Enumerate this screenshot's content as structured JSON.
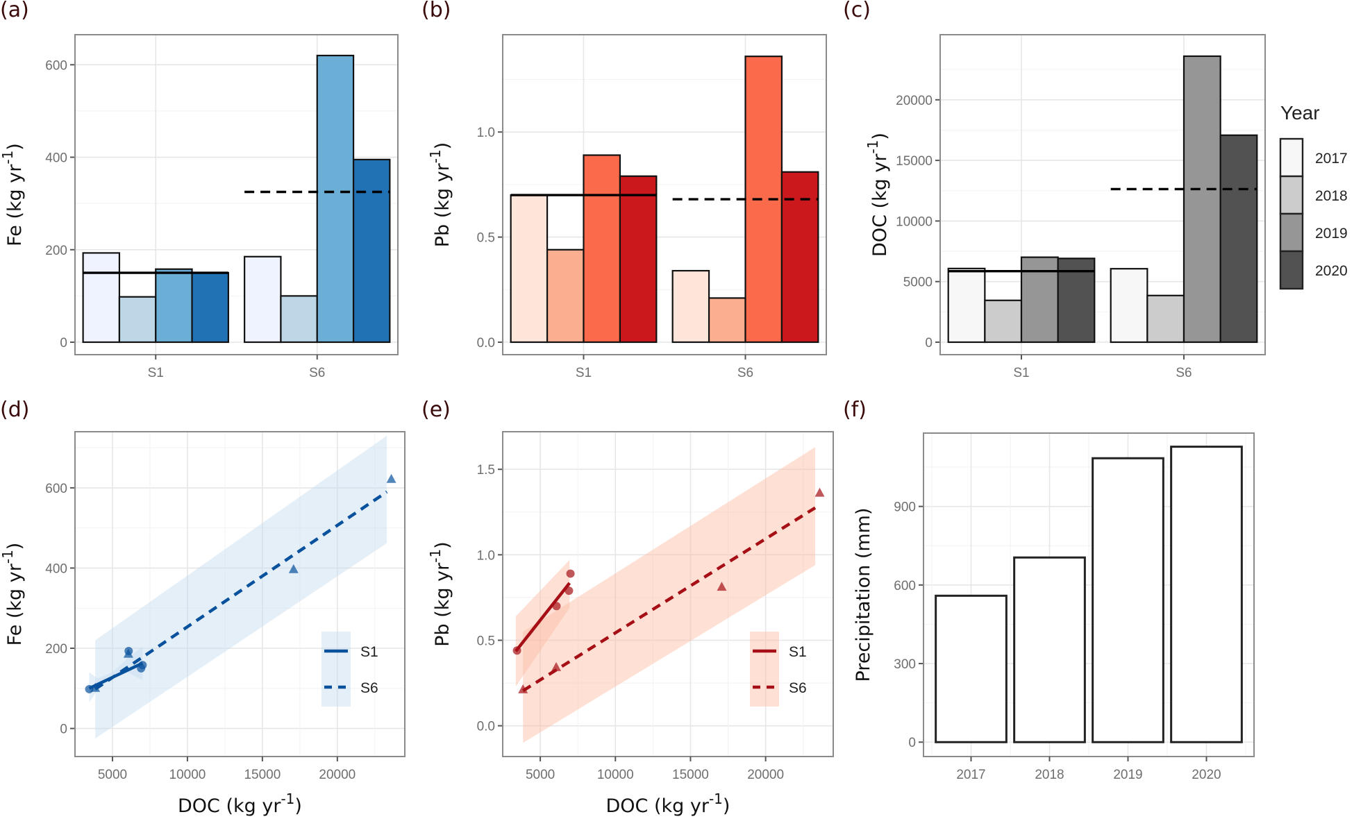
{
  "figure": {
    "panel_labels": [
      "(a)",
      "(b)",
      "(c)",
      "(d)",
      "(e)",
      "(f)"
    ]
  },
  "chart_data": [
    {
      "panel": "(a)",
      "type": "bar",
      "title": "",
      "xlabel": "",
      "ylabel": "Fe (kg yr-1)",
      "ylabel_main": "Fe (kg yr",
      "ylabel_sup": "-1",
      "categories": [
        "S1",
        "S6"
      ],
      "yticks": [
        0,
        200,
        400,
        600
      ],
      "ylim": [
        0,
        650
      ],
      "grid": true,
      "series": [
        {
          "name": "2017",
          "color": "#eff3ff",
          "values": [
            193,
            185
          ]
        },
        {
          "name": "2018",
          "color": "#bdd7e7",
          "values": [
            98,
            100
          ]
        },
        {
          "name": "2019",
          "color": "#6baed6",
          "values": [
            158,
            620
          ]
        },
        {
          "name": "2020",
          "color": "#2171b5",
          "values": [
            150,
            395
          ]
        }
      ],
      "mean_lines": [
        {
          "category": "S1",
          "value": 150,
          "style": "solid"
        },
        {
          "category": "S6",
          "value": 325,
          "style": "dashed"
        }
      ]
    },
    {
      "panel": "(b)",
      "type": "bar",
      "title": "",
      "xlabel": "",
      "ylabel": "Pb (kg yr-1)",
      "ylabel_main": "Pb (kg yr",
      "ylabel_sup": "-1",
      "categories": [
        "S1",
        "S6"
      ],
      "yticks": [
        0.0,
        0.5,
        1.0
      ],
      "ytick_labels": [
        "0.0",
        "0.5",
        "1.0"
      ],
      "ylim": [
        0,
        1.43
      ],
      "grid": true,
      "series": [
        {
          "name": "2017",
          "color": "#fee5d9",
          "values": [
            0.7,
            0.34
          ]
        },
        {
          "name": "2018",
          "color": "#fcae91",
          "values": [
            0.44,
            0.21
          ]
        },
        {
          "name": "2019",
          "color": "#fb6a4a",
          "values": [
            0.89,
            1.36
          ]
        },
        {
          "name": "2020",
          "color": "#cb181d",
          "values": [
            0.79,
            0.81
          ]
        }
      ],
      "mean_lines": [
        {
          "category": "S1",
          "value": 0.7,
          "style": "solid"
        },
        {
          "category": "S6",
          "value": 0.68,
          "style": "dashed"
        }
      ]
    },
    {
      "panel": "(c)",
      "type": "bar",
      "title": "",
      "xlabel": "",
      "ylabel": "DOC (kg yr-1)",
      "ylabel_main": "DOC (kg yr",
      "ylabel_sup": "-1",
      "categories": [
        "S1",
        "S6"
      ],
      "yticks": [
        0,
        5000,
        10000,
        15000,
        20000
      ],
      "ylim": [
        0,
        24800
      ],
      "grid": true,
      "legend": {
        "title": "Year",
        "position": "right",
        "entries": [
          "2017",
          "2018",
          "2019",
          "2020"
        ]
      },
      "series": [
        {
          "name": "2017",
          "color": "#f7f7f7",
          "values": [
            6080,
            6060
          ]
        },
        {
          "name": "2018",
          "color": "#cccccc",
          "values": [
            3450,
            3850
          ]
        },
        {
          "name": "2019",
          "color": "#969696",
          "values": [
            7010,
            23600
          ]
        },
        {
          "name": "2020",
          "color": "#525252",
          "values": [
            6910,
            17080
          ]
        }
      ],
      "mean_lines": [
        {
          "category": "S1",
          "value": 5860,
          "style": "solid"
        },
        {
          "category": "S6",
          "value": 12630,
          "style": "dashed"
        }
      ]
    },
    {
      "panel": "(d)",
      "type": "scatter",
      "title": "",
      "xlabel": "DOC (kg yr-1)",
      "xlabel_main": "DOC (kg yr",
      "xlabel_sup": "-1",
      "ylabel": "Fe (kg yr-1)",
      "ylabel_main": "Fe (kg yr",
      "ylabel_sup": "-1",
      "xticks": [
        5000,
        10000,
        15000,
        20000
      ],
      "yticks": [
        0,
        200,
        400,
        600
      ],
      "xlim": [
        2500,
        24500
      ],
      "ylim": [
        -70,
        740
      ],
      "grid": true,
      "color": "#08519c",
      "ribbon_color": "#c6dbef",
      "legend": {
        "position": "bottom-right",
        "entries": [
          {
            "label": "S1",
            "style": "solid"
          },
          {
            "label": "S6",
            "style": "dashed"
          }
        ]
      },
      "series": [
        {
          "name": "S1",
          "marker": "circle",
          "line": "solid",
          "x": [
            6080,
            3450,
            7010,
            6910
          ],
          "y": [
            193,
            98,
            158,
            150
          ],
          "fit": {
            "x": [
              3450,
              7010
            ],
            "y": [
              100,
              163
            ]
          },
          "ribbon": {
            "x": [
              3450,
              4000,
              5000,
              6000,
              7010
            ],
            "lower": [
              65,
              95,
              128,
              140,
              120
            ],
            "upper": [
              140,
              125,
              140,
              175,
              205
            ]
          }
        },
        {
          "name": "S6",
          "marker": "triangle",
          "line": "dashed",
          "x": [
            6060,
            3850,
            23600,
            17080
          ],
          "y": [
            185,
            100,
            621,
            396
          ],
          "fit": {
            "x": [
              3850,
              23300
            ],
            "y": [
              98,
              590
            ]
          },
          "ribbon": {
            "x": [
              3850,
              23300
            ],
            "lower": [
              -25,
              462
            ],
            "upper": [
              220,
              730
            ]
          }
        }
      ]
    },
    {
      "panel": "(e)",
      "type": "scatter",
      "title": "",
      "xlabel": "DOC (kg yr-1)",
      "xlabel_main": "DOC (kg yr",
      "xlabel_sup": "-1",
      "ylabel": "Pb (kg yr-1)",
      "ylabel_main": "Pb (kg yr",
      "ylabel_sup": "-1",
      "xticks": [
        5000,
        10000,
        15000,
        20000
      ],
      "yticks": [
        0.0,
        0.5,
        1.0,
        1.5
      ],
      "ytick_labels": [
        "0.0",
        "0.5",
        "1.0",
        "1.5"
      ],
      "xlim": [
        2500,
        24500
      ],
      "ylim": [
        -0.18,
        1.72
      ],
      "grid": true,
      "color": "#a50f15",
      "ribbon_color": "#fcbba1",
      "legend": {
        "position": "bottom-right",
        "entries": [
          {
            "label": "S1",
            "style": "solid"
          },
          {
            "label": "S6",
            "style": "dashed"
          }
        ]
      },
      "series": [
        {
          "name": "S1",
          "marker": "circle",
          "line": "solid",
          "x": [
            6080,
            3450,
            7010,
            6910
          ],
          "y": [
            0.7,
            0.44,
            0.89,
            0.79
          ],
          "fit": {
            "x": [
              3370,
              6950
            ],
            "y": [
              0.436,
              0.835
            ]
          },
          "ribbon": {
            "x": [
              3370,
              6950
            ],
            "lower": [
              0.23,
              0.69
            ],
            "upper": [
              0.64,
              0.97
            ]
          }
        },
        {
          "name": "S6",
          "marker": "triangle",
          "line": "dashed",
          "x": [
            6060,
            3850,
            23600,
            17080
          ],
          "y": [
            0.34,
            0.21,
            1.36,
            0.81
          ],
          "fit": {
            "x": [
              3850,
              23300
            ],
            "y": [
              0.205,
              1.275
            ]
          },
          "ribbon": {
            "x": [
              3850,
              23300
            ],
            "lower": [
              -0.1,
              0.94
            ],
            "upper": [
              0.55,
              1.63
            ]
          }
        }
      ]
    },
    {
      "panel": "(f)",
      "type": "bar",
      "title": "",
      "xlabel": "",
      "ylabel": "Precipitation (mm)",
      "categories": [
        "2017",
        "2018",
        "2019",
        "2020"
      ],
      "values": [
        559,
        705,
        1084,
        1128
      ],
      "yticks": [
        0,
        300,
        600,
        900
      ],
      "ylim": [
        -55,
        1180
      ],
      "grid": true,
      "color": "#ffffff"
    }
  ]
}
